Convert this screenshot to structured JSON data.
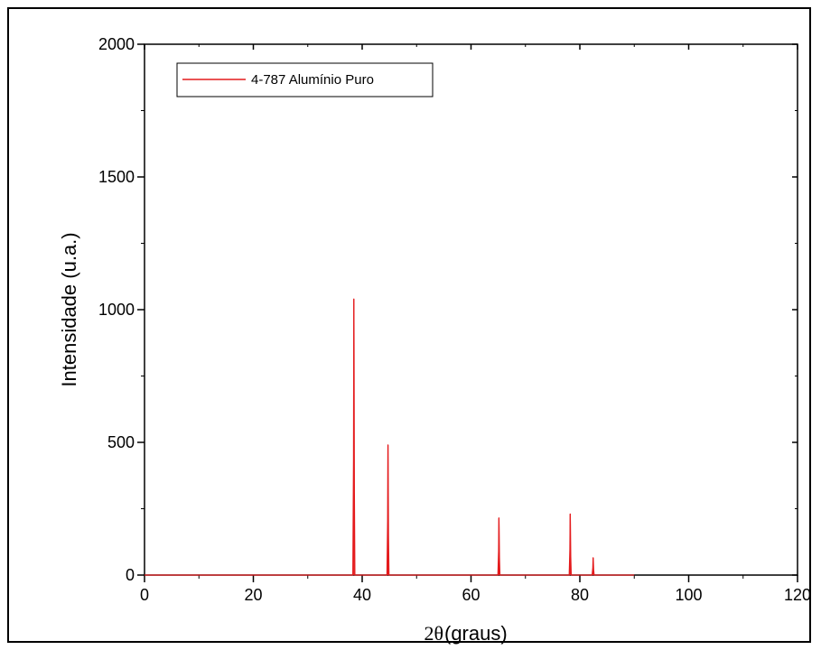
{
  "chart_data": {
    "type": "line",
    "xlabel_symbol": "2θ",
    "xlabel_unit": "(graus)",
    "ylabel": "Intensidade (u.a.)",
    "xlim": [
      0,
      120
    ],
    "ylim": [
      0,
      2000
    ],
    "x_ticks": [
      "0",
      "20",
      "40",
      "60",
      "80",
      "100",
      "120"
    ],
    "y_ticks": [
      "0",
      "500",
      "1000",
      "1500",
      "2000"
    ],
    "grid": false,
    "legend_position": "top-left",
    "series": [
      {
        "name": "4-787 Alumínio Puro",
        "color": "#e41a1c",
        "x_range": [
          0,
          90
        ],
        "peaks": [
          {
            "x": 38.47,
            "y": 1040
          },
          {
            "x": 44.74,
            "y": 490
          },
          {
            "x": 65.13,
            "y": 215
          },
          {
            "x": 78.23,
            "y": 230
          },
          {
            "x": 82.44,
            "y": 65
          }
        ]
      }
    ]
  }
}
